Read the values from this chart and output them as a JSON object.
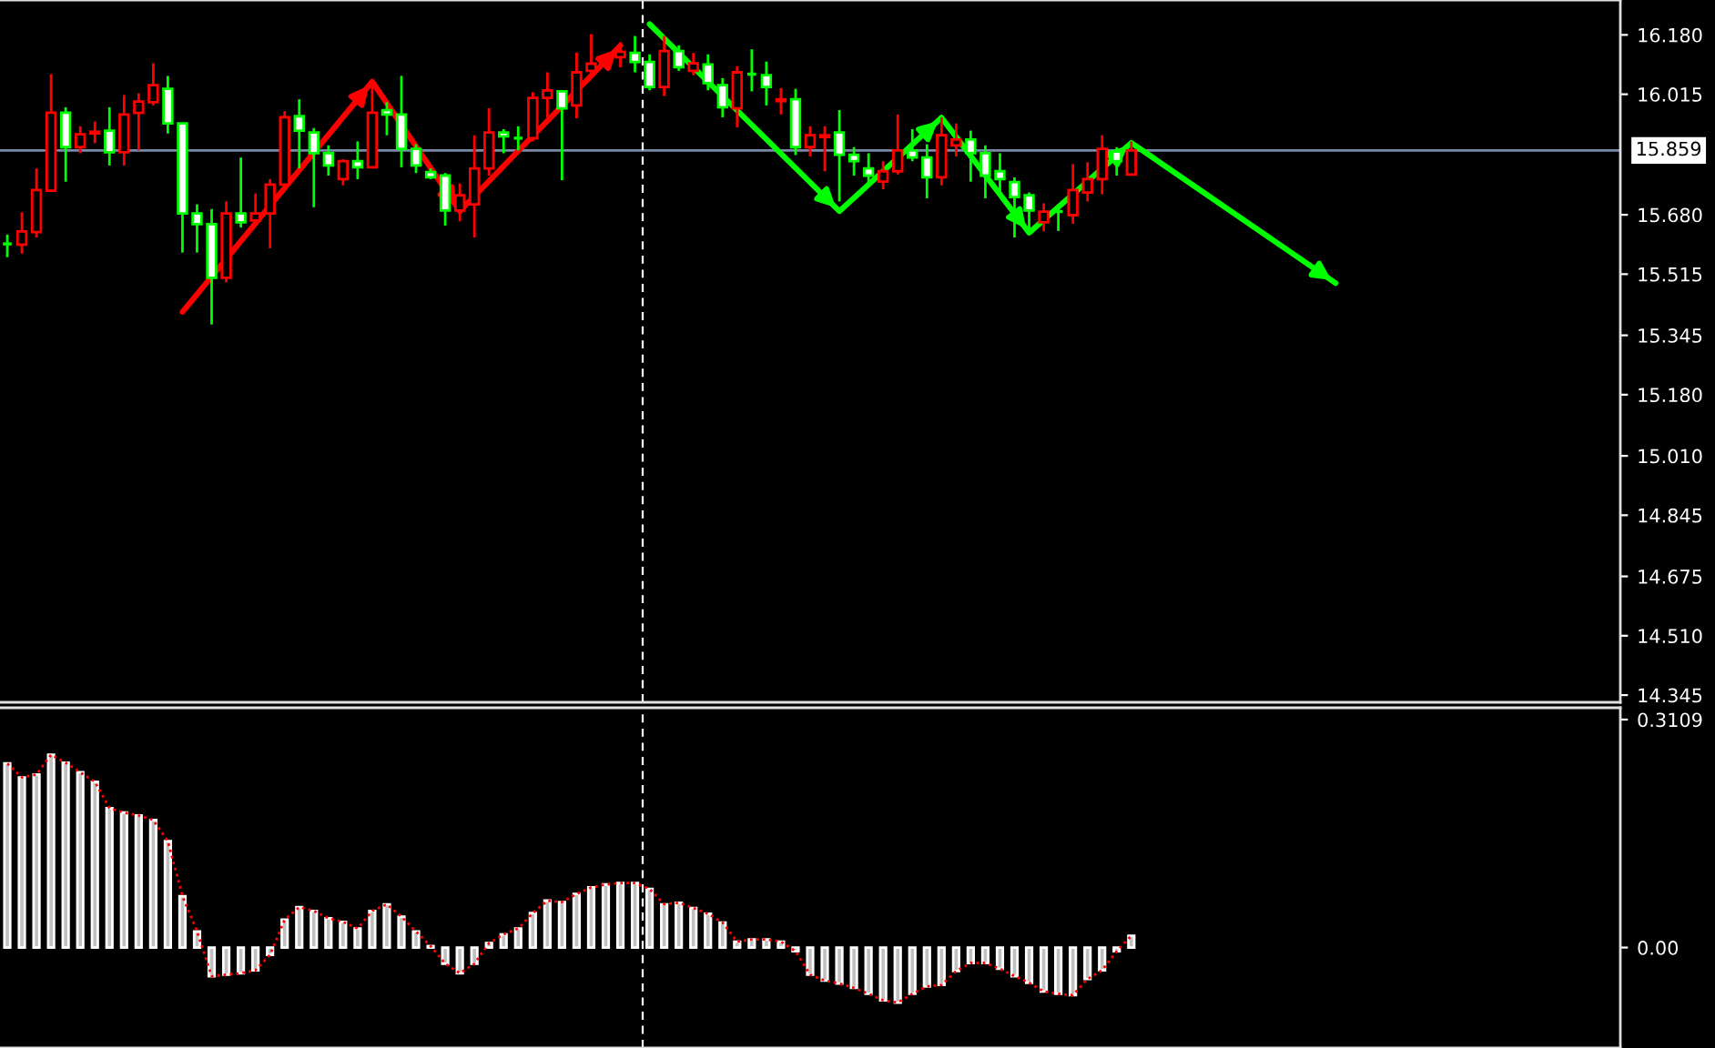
{
  "chart_data": [
    {
      "type": "candlestick",
      "categories": [
        null,
        null,
        null,
        null,
        null,
        null,
        null,
        null,
        null,
        null,
        null,
        null,
        null,
        null,
        null,
        null,
        null,
        null,
        null,
        null,
        null,
        null,
        null,
        null,
        null,
        null,
        null,
        null,
        null,
        null,
        null,
        null,
        null,
        null,
        null,
        null,
        null,
        null,
        null,
        null,
        null,
        null,
        null,
        null,
        null,
        null,
        null,
        null,
        null,
        null,
        null,
        null,
        null,
        null,
        null,
        null,
        null,
        null,
        null,
        null,
        null,
        null,
        null,
        null,
        null,
        null,
        null,
        null,
        null,
        null,
        null,
        null,
        null,
        null,
        null,
        null,
        null,
        null,
        null,
        null,
        null,
        null,
        null,
        null,
        null,
        null,
        null,
        null,
        null,
        null,
        null,
        null,
        null,
        null,
        null,
        null,
        null,
        null,
        null,
        null,
        null,
        null,
        null,
        null,
        null,
        null,
        null,
        null,
        null,
        null,
        null
      ],
      "ohlc": [
        [
          15.599,
          15.625,
          15.562,
          15.599
        ],
        [
          15.597,
          15.687,
          15.572,
          15.634
        ],
        [
          15.632,
          15.809,
          15.617,
          15.749
        ],
        [
          15.747,
          16.071,
          15.747,
          15.964
        ],
        [
          15.964,
          15.979,
          15.772,
          15.868
        ],
        [
          15.868,
          15.926,
          15.851,
          15.904
        ],
        [
          15.906,
          15.939,
          15.879,
          15.911
        ],
        [
          15.914,
          15.979,
          15.817,
          15.854
        ],
        [
          15.854,
          16.013,
          15.817,
          15.959
        ],
        [
          15.963,
          16.018,
          15.859,
          15.995
        ],
        [
          15.993,
          16.101,
          15.984,
          16.04
        ],
        [
          16.03,
          16.066,
          15.906,
          15.934
        ],
        [
          15.934,
          15.934,
          15.575,
          15.684
        ],
        [
          15.684,
          15.709,
          15.575,
          15.654
        ],
        [
          15.654,
          15.696,
          15.375,
          15.505
        ],
        [
          15.505,
          15.717,
          15.492,
          15.684
        ],
        [
          15.684,
          15.839,
          15.645,
          15.659
        ],
        [
          15.664,
          15.739,
          15.659,
          15.684
        ],
        [
          15.684,
          15.779,
          15.587,
          15.764
        ],
        [
          15.764,
          15.968,
          15.759,
          15.951
        ],
        [
          15.954,
          16.001,
          15.809,
          15.914
        ],
        [
          15.909,
          15.921,
          15.701,
          15.851
        ],
        [
          15.851,
          15.873,
          15.789,
          15.817
        ],
        [
          15.779,
          15.834,
          15.762,
          15.829
        ],
        [
          15.829,
          15.884,
          15.779,
          15.812
        ],
        [
          15.812,
          16.055,
          15.809,
          15.964
        ],
        [
          15.971,
          15.993,
          15.901,
          15.959
        ],
        [
          15.959,
          16.066,
          15.812,
          15.863
        ],
        [
          15.863,
          15.876,
          15.796,
          15.817
        ],
        [
          15.799,
          15.809,
          15.779,
          15.784
        ],
        [
          15.789,
          15.796,
          15.65,
          15.692
        ],
        [
          15.692,
          15.767,
          15.662,
          15.734
        ],
        [
          15.709,
          15.901,
          15.617,
          15.809
        ],
        [
          15.809,
          15.976,
          15.789,
          15.909
        ],
        [
          15.909,
          15.918,
          15.851,
          15.898
        ],
        [
          15.893,
          15.926,
          15.859,
          15.893
        ],
        [
          15.893,
          16.021,
          15.884,
          16.005
        ],
        [
          16.005,
          16.076,
          15.951,
          16.026
        ],
        [
          16.023,
          16.026,
          15.776,
          15.976
        ],
        [
          15.984,
          16.131,
          15.948,
          16.076
        ],
        [
          16.08,
          16.182,
          16.06,
          16.1
        ],
        null,
        [
          16.118,
          16.16,
          16.09,
          16.133
        ],
        [
          16.13,
          16.177,
          16.076,
          16.105
        ],
        [
          16.105,
          16.126,
          16.026,
          16.035
        ],
        [
          16.035,
          16.177,
          16.01,
          16.135
        ],
        [
          16.135,
          16.151,
          16.08,
          16.09
        ],
        [
          16.08,
          16.13,
          16.068,
          16.101
        ],
        [
          16.098,
          16.126,
          16.026,
          16.046
        ],
        [
          16.04,
          16.06,
          15.951,
          15.979
        ],
        [
          15.976,
          16.093,
          15.923,
          16.076
        ],
        [
          16.071,
          16.14,
          16.023,
          16.071
        ],
        [
          16.068,
          16.106,
          15.984,
          16.035
        ],
        [
          15.996,
          16.032,
          15.959,
          16.001
        ],
        [
          16.001,
          16.03,
          15.846,
          15.868
        ],
        [
          15.868,
          15.926,
          15.842,
          15.901
        ],
        [
          15.896,
          15.926,
          15.801,
          15.901
        ],
        [
          15.909,
          15.971,
          15.717,
          15.847
        ],
        [
          15.847,
          15.868,
          15.789,
          15.829
        ],
        [
          15.809,
          15.851,
          15.762,
          15.789
        ],
        [
          15.772,
          15.829,
          15.751,
          15.801
        ],
        [
          15.801,
          15.959,
          15.792,
          15.859
        ],
        [
          15.859,
          15.918,
          15.829,
          15.839
        ],
        [
          15.839,
          15.876,
          15.726,
          15.784
        ],
        [
          15.784,
          15.951,
          15.762,
          15.901
        ],
        [
          15.873,
          15.934,
          15.842,
          15.889
        ],
        [
          15.889,
          15.914,
          15.772,
          15.851
        ],
        [
          15.851,
          15.873,
          15.726,
          15.789
        ],
        [
          15.801,
          15.851,
          15.732,
          15.779
        ],
        [
          15.771,
          15.784,
          15.617,
          15.729
        ],
        [
          15.734,
          15.742,
          15.634,
          15.692
        ],
        [
          15.659,
          15.712,
          15.634,
          15.689
        ],
        [
          15.689,
          15.706,
          15.635,
          15.689
        ],
        [
          15.679,
          15.821,
          15.655,
          15.749
        ],
        [
          15.742,
          15.826,
          15.717,
          15.779
        ],
        [
          15.779,
          15.901,
          15.737,
          15.863
        ],
        [
          15.856,
          15.868,
          15.789,
          15.829
        ],
        [
          15.792,
          15.884,
          15.789,
          15.859
        ],
        null,
        null,
        null,
        null,
        null,
        null,
        null,
        null,
        null,
        null,
        null,
        null,
        null,
        null,
        null,
        null,
        null,
        null,
        null,
        null,
        null,
        null,
        null,
        null,
        null,
        null,
        null,
        null,
        null,
        null,
        null,
        null,
        null
      ],
      "series": [
        {
          "type": "line",
          "color": "#ff0000",
          "values": [
            null,
            null,
            null,
            null,
            null,
            null,
            null,
            null,
            null,
            null,
            null,
            null,
            15.41,
            null,
            null,
            null,
            null,
            null,
            null,
            null,
            null,
            null,
            null,
            null,
            null,
            16.05,
            null,
            null,
            null,
            null,
            null,
            15.69,
            null,
            null,
            null,
            null,
            null,
            null,
            null,
            null,
            null,
            null,
            16.15,
            null,
            null,
            null,
            null,
            null,
            null,
            null,
            null,
            null,
            null,
            null,
            null,
            null,
            null,
            null,
            null,
            null,
            null,
            null,
            null,
            null,
            null,
            null,
            null,
            null,
            null,
            null,
            null,
            null,
            null,
            null,
            null,
            null,
            null,
            null,
            null,
            null,
            null,
            null,
            null,
            null,
            null,
            null,
            null,
            null,
            null,
            null,
            null,
            null,
            null,
            null,
            null,
            null,
            null,
            null,
            null,
            null,
            null,
            null,
            null,
            null,
            null,
            null,
            null,
            null,
            null,
            null,
            null
          ]
        },
        {
          "type": "line",
          "color": "#00ff00",
          "values": [
            null,
            null,
            null,
            null,
            null,
            null,
            null,
            null,
            null,
            null,
            null,
            null,
            null,
            null,
            null,
            null,
            null,
            null,
            null,
            null,
            null,
            null,
            null,
            null,
            null,
            null,
            null,
            null,
            null,
            null,
            null,
            null,
            null,
            null,
            null,
            null,
            null,
            null,
            null,
            null,
            null,
            null,
            null,
            null,
            16.21,
            null,
            null,
            null,
            null,
            null,
            null,
            null,
            null,
            null,
            null,
            null,
            null,
            15.69,
            null,
            null,
            null,
            null,
            null,
            null,
            15.95,
            null,
            null,
            null,
            null,
            null,
            15.63,
            null,
            null,
            null,
            null,
            null,
            null,
            15.88,
            null,
            null,
            null,
            null,
            null,
            null,
            null,
            null,
            null,
            null,
            null,
            null,
            null,
            15.49,
            null,
            null,
            null,
            null,
            null,
            null,
            null,
            null,
            null,
            null,
            null,
            null,
            null,
            null,
            null,
            null,
            null,
            null,
            null
          ]
        }
      ],
      "ylim": [
        14.325,
        16.277
      ],
      "yticks": [
        {
          "value": 16.18,
          "label": "16.180"
        },
        16.015,
        {
          "value": 15.68,
          "label": "15.680"
        },
        15.515,
        15.345,
        {
          "value": 15.18,
          "label": "15.180"
        },
        {
          "value": 15.01,
          "label": "15.010"
        },
        14.845,
        14.675,
        {
          "value": 14.51,
          "label": "14.510"
        },
        14.345
      ],
      "ref_lines": [
        {
          "axis": "y",
          "value": 15.859,
          "label": "15.859",
          "color": "#7888a8",
          "line_style": "solid"
        }
      ],
      "tick_labels": "y",
      "grid": false,
      "legend": false
    },
    {
      "type": "bar",
      "categories": [
        null,
        null,
        null,
        null,
        null,
        null,
        null,
        null,
        null,
        null,
        null,
        null,
        null,
        null,
        null,
        null,
        null,
        null,
        null,
        null,
        null,
        null,
        null,
        null,
        null,
        null,
        null,
        null,
        null,
        null,
        null,
        null,
        null,
        null,
        null,
        null,
        null,
        null,
        null,
        null,
        null,
        null,
        null,
        null,
        null,
        null,
        null,
        null,
        null,
        null,
        null,
        null,
        null,
        null,
        null,
        null,
        null,
        null,
        null,
        null,
        null,
        null,
        null,
        null,
        null,
        null,
        null,
        null,
        null,
        null,
        null,
        null,
        null,
        null,
        null,
        null,
        null,
        null,
        null,
        null,
        null,
        null,
        null,
        null,
        null,
        null,
        null,
        null,
        null,
        null,
        null,
        null,
        null,
        null,
        null,
        null,
        null,
        null,
        null,
        null,
        null,
        null,
        null,
        null,
        null,
        null,
        null,
        null,
        null,
        null,
        null
      ],
      "series": [
        {
          "type": "bar",
          "color": "#c0c0c0",
          "values": [
            0.251,
            0.232,
            0.236,
            0.263,
            0.252,
            0.239,
            0.226,
            0.19,
            0.184,
            0.18,
            0.174,
            0.145,
            0.07,
            0.022,
            -0.039,
            -0.037,
            -0.035,
            -0.031,
            -0.01,
            0.038,
            0.055,
            0.05,
            0.04,
            0.035,
            0.026,
            0.05,
            0.059,
            0.042,
            0.022,
            0.002,
            -0.022,
            -0.035,
            -0.022,
            0.006,
            0.018,
            0.026,
            0.047,
            0.064,
            0.062,
            0.073,
            0.082,
            0.086,
            0.088,
            0.088,
            0.08,
            0.059,
            0.061,
            0.054,
            0.046,
            0.034,
            0.008,
            0.011,
            0.011,
            0.008,
            -0.005,
            -0.037,
            -0.045,
            -0.049,
            -0.055,
            -0.063,
            -0.072,
            -0.075,
            -0.063,
            -0.053,
            -0.051,
            -0.032,
            -0.021,
            -0.021,
            -0.029,
            -0.039,
            -0.048,
            -0.06,
            -0.063,
            -0.065,
            -0.043,
            -0.031,
            -0.005,
            0.016,
            null,
            null,
            null,
            null,
            null,
            null,
            null,
            null,
            null,
            null,
            null,
            null,
            null,
            null,
            null,
            null,
            null,
            null,
            null,
            null,
            null,
            null,
            null,
            null,
            null,
            null,
            null,
            null,
            null,
            null,
            null,
            null,
            null
          ]
        },
        {
          "type": "line",
          "color": "#ff0000",
          "line_style": "dotted",
          "values": [
            0.251,
            0.232,
            0.236,
            0.263,
            0.252,
            0.239,
            0.226,
            0.19,
            0.184,
            0.18,
            0.174,
            0.145,
            0.07,
            0.022,
            -0.039,
            -0.037,
            -0.035,
            -0.031,
            -0.01,
            0.038,
            0.055,
            0.05,
            0.04,
            0.035,
            0.026,
            0.05,
            0.059,
            0.042,
            0.022,
            0.002,
            -0.022,
            -0.035,
            -0.022,
            0.006,
            0.018,
            0.026,
            0.047,
            0.064,
            0.062,
            0.073,
            0.082,
            0.086,
            0.088,
            0.088,
            0.08,
            0.059,
            0.061,
            0.054,
            0.046,
            0.034,
            0.008,
            0.011,
            0.011,
            0.008,
            -0.005,
            -0.037,
            -0.045,
            -0.049,
            -0.055,
            -0.063,
            -0.072,
            -0.075,
            -0.063,
            -0.053,
            -0.051,
            -0.032,
            -0.021,
            -0.021,
            -0.029,
            -0.039,
            -0.048,
            -0.06,
            -0.063,
            -0.065,
            -0.043,
            -0.031,
            -0.005,
            0.016,
            null,
            null,
            null,
            null,
            null,
            null,
            null,
            null,
            null,
            null,
            null,
            null,
            null,
            null,
            null,
            null,
            null,
            null,
            null,
            null,
            null,
            null,
            null,
            null,
            null,
            null,
            null,
            null,
            null,
            null,
            null,
            null,
            null
          ]
        }
      ],
      "ylim": [
        -0.137,
        0.327
      ],
      "yticks": [
        0.3109,
        {
          "value": 0,
          "label": "0.00"
        }
      ],
      "tick_labels": "y",
      "grid": false,
      "legend": false
    }
  ]
}
